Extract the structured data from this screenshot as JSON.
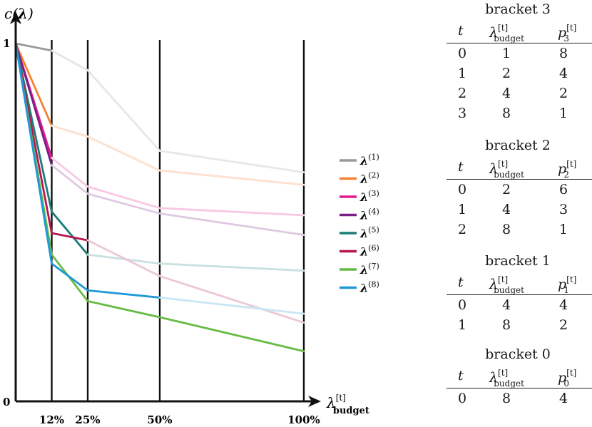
{
  "chart_data": {
    "type": "line",
    "ylabel": "c(λ)",
    "xlabel_base": "λ",
    "xlabel_sup": "[t]",
    "xlabel_sub": "budget",
    "y_tick_labels": [
      "0",
      "1"
    ],
    "ylim": [
      0,
      1
    ],
    "x_ticks": [
      0.125,
      0.25,
      0.5,
      1.0
    ],
    "x_tick_labels": [
      "12%",
      "25%",
      "50%",
      "100%"
    ],
    "series": [
      {
        "name": "λ(1)",
        "sup": "(1)",
        "color": "#999999",
        "x": [
          0,
          0.125,
          0.25,
          0.5,
          1.0
        ],
        "y": [
          1.0,
          0.98,
          0.925,
          0.7,
          0.64
        ],
        "solid_until": 0.125
      },
      {
        "name": "λ(2)",
        "sup": "(2)",
        "color": "#f58231",
        "x": [
          0,
          0.125,
          0.25,
          0.5,
          1.0
        ],
        "y": [
          1.0,
          0.77,
          0.74,
          0.645,
          0.605
        ],
        "solid_until": 0.125
      },
      {
        "name": "λ(3)",
        "sup": "(3)",
        "color": "#e6198c",
        "x": [
          0,
          0.125,
          0.25,
          0.5,
          1.0
        ],
        "y": [
          1.0,
          0.68,
          0.6,
          0.54,
          0.52
        ],
        "solid_until": 0.125
      },
      {
        "name": "λ(4)",
        "sup": "(4)",
        "color": "#7b1e86",
        "x": [
          0,
          0.125,
          0.25,
          0.5,
          1.0
        ],
        "y": [
          1.0,
          0.66,
          0.58,
          0.525,
          0.465
        ],
        "solid_until": 0.125
      },
      {
        "name": "λ(5)",
        "sup": "(5)",
        "color": "#1b7d78",
        "x": [
          0,
          0.125,
          0.25,
          0.5,
          1.0
        ],
        "y": [
          1.0,
          0.53,
          0.41,
          0.385,
          0.365
        ],
        "solid_until": 0.25
      },
      {
        "name": "λ(6)",
        "sup": "(6)",
        "color": "#b5174f",
        "x": [
          0,
          0.125,
          0.25,
          0.5,
          1.0
        ],
        "y": [
          1.0,
          0.47,
          0.45,
          0.35,
          0.22
        ],
        "solid_until": 0.25
      },
      {
        "name": "λ(7)",
        "sup": "(7)",
        "color": "#66bb44",
        "x": [
          0,
          0.125,
          0.25,
          0.5,
          1.0
        ],
        "y": [
          1.0,
          0.41,
          0.28,
          0.235,
          0.14
        ],
        "solid_until": 1.0
      },
      {
        "name": "λ(8)",
        "sup": "(8)",
        "color": "#1f98d6",
        "x": [
          0,
          0.125,
          0.25,
          0.5,
          1.0
        ],
        "y": [
          1.0,
          0.385,
          0.31,
          0.29,
          0.245
        ],
        "solid_until": 0.5
      }
    ],
    "legend_position": "right"
  },
  "tables": [
    {
      "title": "bracket 3",
      "col_t": "t",
      "col_lambda": "λ",
      "col_lambda_sup": "[t]",
      "col_lambda_sub": "budget",
      "col_p": "p",
      "col_p_sup": "[t]",
      "col_p_sub": "3",
      "rows": [
        [
          "0",
          "1",
          "8"
        ],
        [
          "1",
          "2",
          "4"
        ],
        [
          "2",
          "4",
          "2"
        ],
        [
          "3",
          "8",
          "1"
        ]
      ]
    },
    {
      "title": "bracket 2",
      "col_t": "t",
      "col_lambda": "λ",
      "col_lambda_sup": "[t]",
      "col_lambda_sub": "budget",
      "col_p": "p",
      "col_p_sup": "[t]",
      "col_p_sub": "2",
      "rows": [
        [
          "0",
          "2",
          "6"
        ],
        [
          "1",
          "4",
          "3"
        ],
        [
          "2",
          "8",
          "1"
        ]
      ]
    },
    {
      "title": "bracket 1",
      "col_t": "t",
      "col_lambda": "λ",
      "col_lambda_sup": "[t]",
      "col_lambda_sub": "budget",
      "col_p": "p",
      "col_p_sup": "[t]",
      "col_p_sub": "1",
      "rows": [
        [
          "0",
          "4",
          "4"
        ],
        [
          "1",
          "8",
          "2"
        ]
      ]
    },
    {
      "title": "bracket 0",
      "col_t": "t",
      "col_lambda": "λ",
      "col_lambda_sup": "[t]",
      "col_lambda_sub": "budget",
      "col_p": "p",
      "col_p_sup": "[t]",
      "col_p_sub": "0",
      "rows": [
        [
          "0",
          "8",
          "4"
        ]
      ]
    }
  ]
}
